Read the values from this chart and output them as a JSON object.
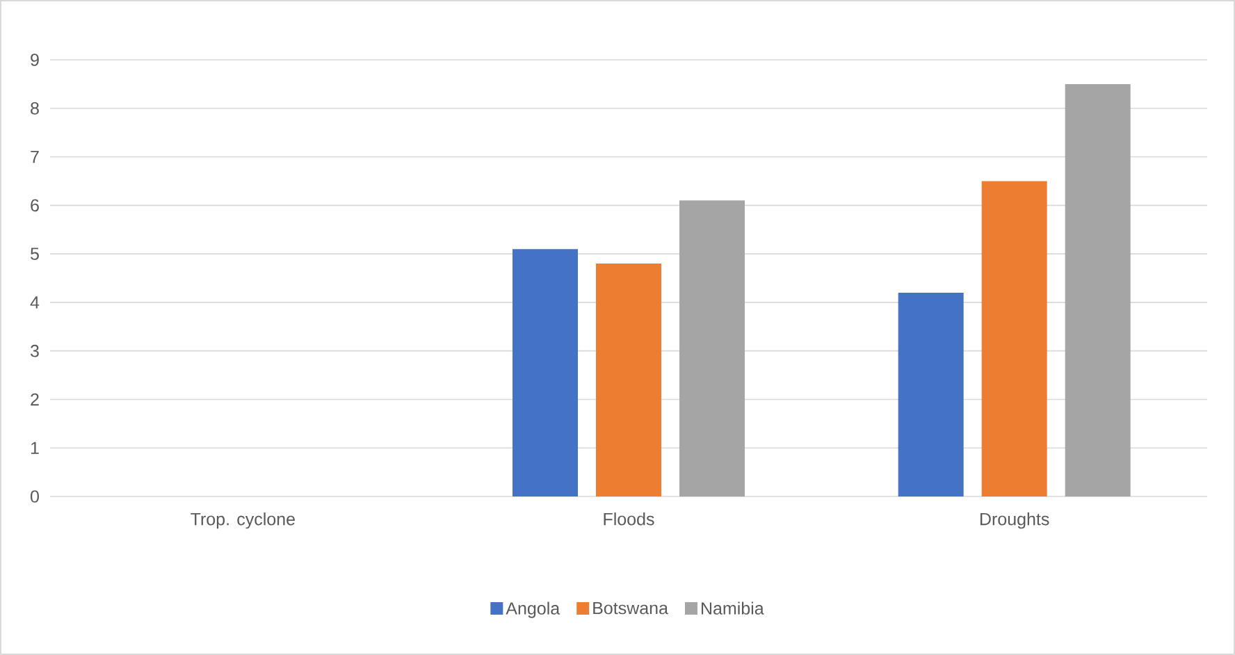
{
  "chart_data": {
    "type": "bar",
    "categories": [
      "Trop. cyclone",
      "Floods",
      "Droughts"
    ],
    "series": [
      {
        "name": "Angola",
        "color": "#4472c4",
        "values": [
          null,
          5.1,
          4.2
        ]
      },
      {
        "name": "Botswana",
        "color": "#ed7d31",
        "values": [
          null,
          4.8,
          6.5
        ]
      },
      {
        "name": "Namibia",
        "color": "#a5a5a5",
        "values": [
          null,
          6.1,
          8.5
        ]
      }
    ],
    "ylim": [
      0,
      9
    ],
    "yticks": [
      0,
      1,
      2,
      3,
      4,
      5,
      6,
      7,
      8,
      9
    ],
    "grid": "y",
    "legend": "bottom"
  }
}
